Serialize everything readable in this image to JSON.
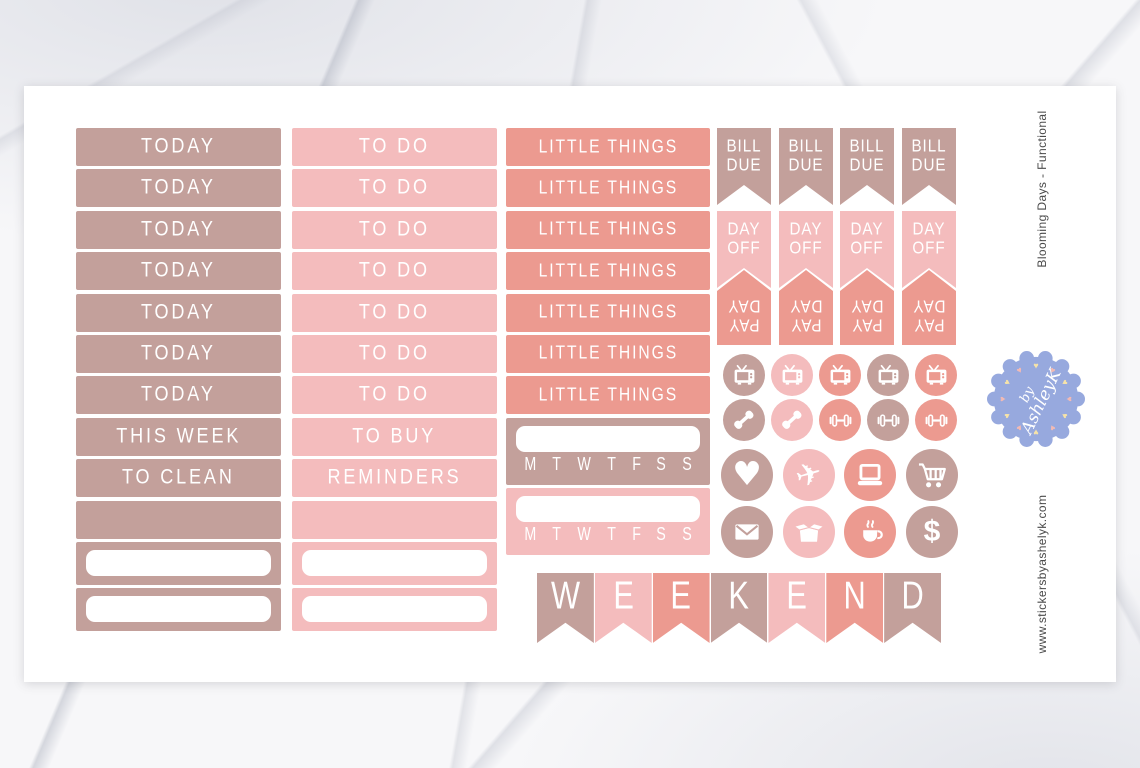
{
  "side_labels": {
    "top_right": "Blooming Days - Functional",
    "bottom_right": "www.stickersbyashelyk.com"
  },
  "colors": {
    "mauve": "#c3a09b",
    "pink": "#f4bcbd",
    "salmon": "#ec9a90",
    "white": "#ffffff",
    "logo_blue": "#97a9de",
    "heart_yellow": "#f6e3a8",
    "heart_pink": "#f2bab4",
    "side_text": "#4a4a4a"
  },
  "columns": {
    "col1": {
      "labels": [
        "TODAY",
        "TODAY",
        "TODAY",
        "TODAY",
        "TODAY",
        "TODAY",
        "TODAY",
        "THIS WEEK",
        "TO CLEAN"
      ]
    },
    "col2": {
      "labels": [
        "TO DO",
        "TO DO",
        "TO DO",
        "TO DO",
        "TO DO",
        "TO DO",
        "TO DO",
        "TO BUY",
        "REMINDERS"
      ]
    },
    "col3": {
      "labels": [
        "LITTLE THINGS",
        "LITTLE THINGS",
        "LITTLE THINGS",
        "LITTLE THINGS",
        "LITTLE THINGS",
        "LITTLE THINGS",
        "LITTLE THINGS"
      ]
    }
  },
  "habit_tracker": {
    "days": [
      "M",
      "T",
      "W",
      "T",
      "F",
      "S",
      "S"
    ]
  },
  "flags": {
    "bill_due": {
      "line1": "BILL",
      "line2": "DUE"
    },
    "day_off": {
      "line1": "DAY",
      "line2": "OFF"
    },
    "pay_day": {
      "line1": "PAY",
      "line2": "DAY"
    }
  },
  "icon_grid": {
    "small_rows": [
      [
        "tv",
        "tv",
        "tv",
        "tv",
        "tv"
      ],
      [
        "phone",
        "phone",
        "dumbbell",
        "dumbbell",
        "dumbbell"
      ]
    ],
    "large_rows": [
      [
        "heart",
        "plane",
        "laptop",
        "shopping-cart"
      ],
      [
        "mail",
        "package-box",
        "coffee",
        "dollar"
      ]
    ]
  },
  "glyphs": {
    "heart": "♥",
    "plane": "✈",
    "dollar": "$"
  },
  "weekend": {
    "letters": [
      "W",
      "E",
      "E",
      "K",
      "E",
      "N",
      "D"
    ]
  },
  "logo": {
    "line1": "by",
    "line2": "AshleyK",
    "heart_glyph": "♥"
  }
}
